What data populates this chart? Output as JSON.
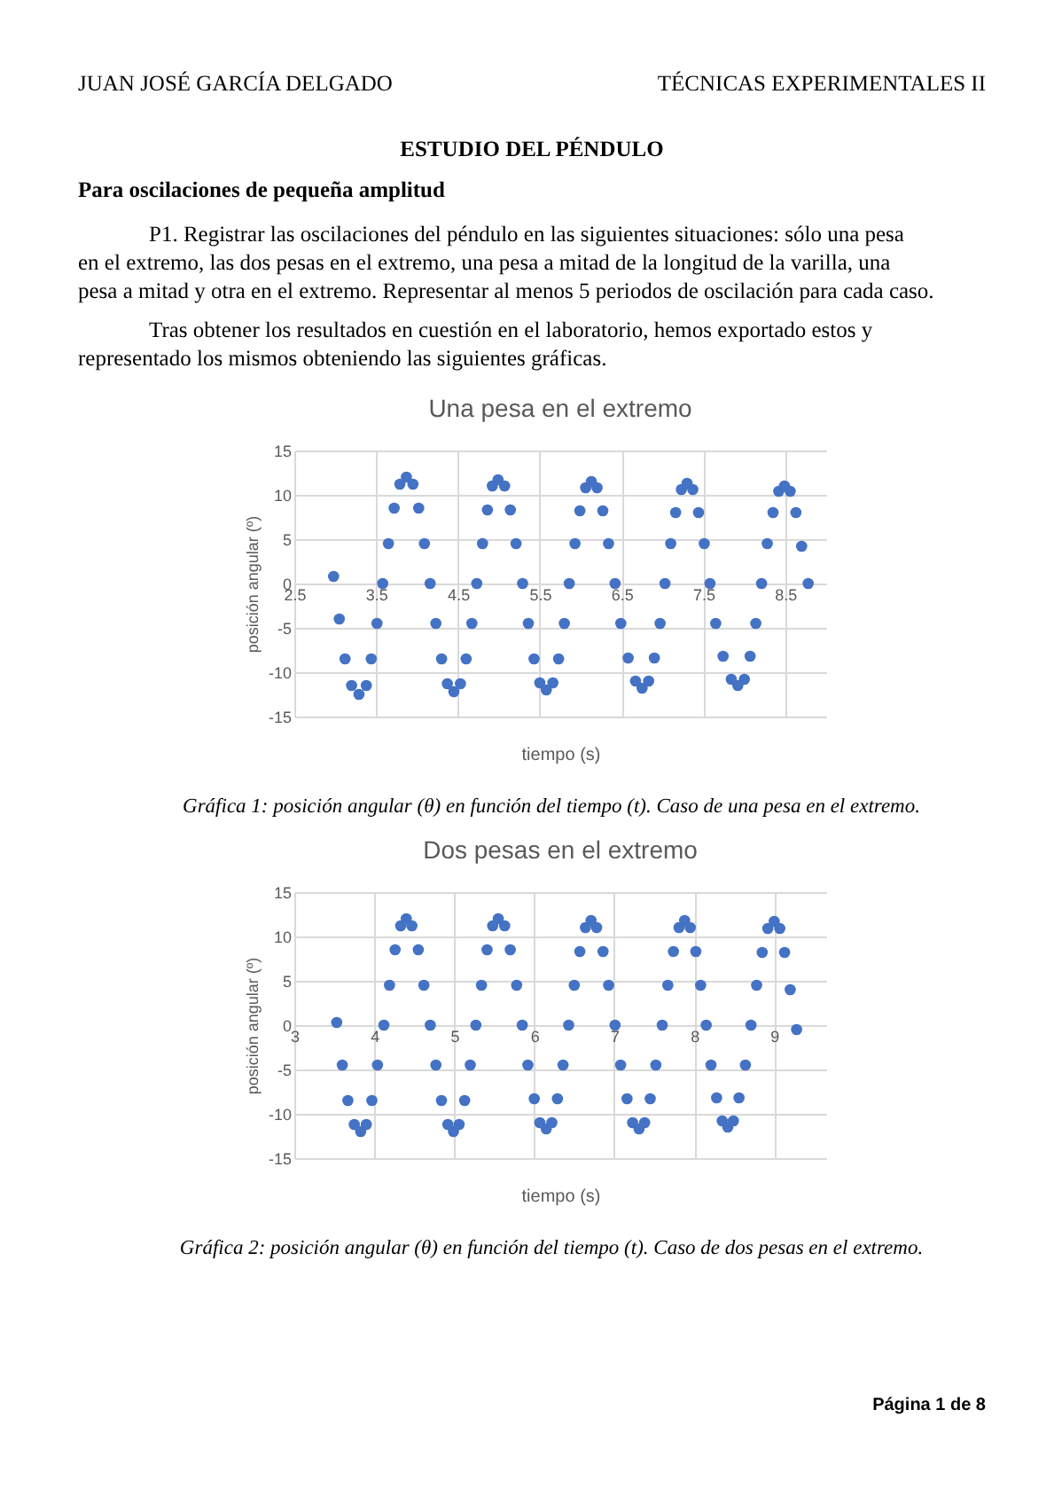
{
  "chart_data": [
    {
      "type": "scatter",
      "title": "Una pesa en el extremo",
      "xlabel": "tiempo (s)",
      "ylabel": "posición angular (º)",
      "x": [
        2.98,
        3.05,
        3.12,
        3.2,
        3.29,
        3.38,
        3.44,
        3.51,
        3.58,
        3.65,
        3.72,
        3.79,
        3.87,
        3.95,
        4.02,
        4.09,
        4.16,
        4.23,
        4.3,
        4.37,
        4.45,
        4.53,
        4.6,
        4.67,
        4.73,
        4.8,
        4.86,
        4.92,
        4.99,
        5.07,
        5.14,
        5.21,
        5.29,
        5.36,
        5.43,
        5.5,
        5.58,
        5.66,
        5.73,
        5.8,
        5.86,
        5.93,
        5.99,
        6.06,
        6.13,
        6.2,
        6.27,
        6.34,
        6.42,
        6.49,
        6.58,
        6.67,
        6.75,
        6.83,
        6.9,
        6.97,
        7.03,
        7.1,
        7.16,
        7.23,
        7.3,
        7.37,
        7.44,
        7.51,
        7.58,
        7.65,
        7.74,
        7.84,
        7.92,
        8.0,
        8.07,
        8.14,
        8.21,
        8.28,
        8.35,
        8.42,
        8.49,
        8.56,
        8.63,
        8.7,
        8.78
      ],
      "series": [
        {
          "color": "#4472c4",
          "values": [
            0.8,
            -4,
            -8.5,
            -11.5,
            -12.5,
            -11.5,
            -8.5,
            -4.5,
            0,
            4.5,
            8.5,
            11.2,
            12,
            11.2,
            8.5,
            4.5,
            0,
            -4.5,
            -8.5,
            -11.3,
            -12.2,
            -11.3,
            -8.5,
            -4.5,
            0,
            4.5,
            8.3,
            11,
            11.7,
            11,
            8.3,
            4.5,
            0,
            -4.5,
            -8.5,
            -11.2,
            -12,
            -11.2,
            -8.5,
            -4.5,
            0,
            4.5,
            8.2,
            10.8,
            11.5,
            10.8,
            8.2,
            4.5,
            0,
            -4.5,
            -8.4,
            -11,
            -11.8,
            -11,
            -8.4,
            -4.5,
            0,
            4.5,
            8,
            10.6,
            11.3,
            10.6,
            8,
            4.5,
            0,
            -4.5,
            -8.2,
            -10.8,
            -11.5,
            -10.8,
            -8.2,
            -4.5,
            0,
            4.5,
            8,
            10.4,
            11,
            10.4,
            8,
            4.2,
            0
          ]
        }
      ],
      "xlim": [
        2.5,
        9.0
      ],
      "xticks": [
        2.5,
        3.5,
        4.5,
        5.5,
        6.5,
        7.5,
        8.5
      ],
      "ylim": [
        -15,
        15
      ],
      "yticks": [
        -15,
        -10,
        -5,
        0,
        5,
        10,
        15
      ],
      "grid": true,
      "marker": "circle",
      "annotations": [
        "JUAN JOSÉ GARCÍA DELGADO",
        "TÉCNICAS EXPERIMENTALES II",
        "ESTUDIO DEL PÉNDULO",
        "Para oscilaciones de pequeña amplitud",
        "P1. Registrar las oscilaciones del péndulo en las siguientes situaciones: sólo una pesa en el extremo, las dos pesas en el extremo, una pesa a mitad de la longitud de la varilla, una pesa a mitad y otra en el extremo. Representar al menos 5 periodos de oscilación para cada caso.",
        "Tras obtener los resultados en cuestión en el laboratorio, hemos exportado estos y representado los mismos obteniendo las siguientes gráficas.",
        "Gráfica 1: posición angular (θ) en función del tiempo (t). Caso de una pesa en el extremo."
      ]
    },
    {
      "type": "scatter",
      "title": "Dos pesas en el extremo",
      "xlabel": "tiempo (s)",
      "ylabel": "posición angular (º)",
      "x": [
        3.53,
        3.6,
        3.67,
        3.75,
        3.83,
        3.9,
        3.97,
        4.04,
        4.12,
        4.19,
        4.26,
        4.33,
        4.4,
        4.47,
        4.55,
        4.62,
        4.7,
        4.77,
        4.84,
        4.92,
        4.99,
        5.06,
        5.13,
        5.2,
        5.27,
        5.34,
        5.41,
        5.48,
        5.55,
        5.63,
        5.7,
        5.78,
        5.85,
        5.92,
        6.0,
        6.07,
        6.15,
        6.22,
        6.29,
        6.36,
        6.43,
        6.5,
        6.57,
        6.64,
        6.71,
        6.78,
        6.86,
        6.93,
        7.01,
        7.08,
        7.16,
        7.23,
        7.31,
        7.38,
        7.45,
        7.52,
        7.6,
        7.67,
        7.74,
        7.81,
        7.88,
        7.95,
        8.02,
        8.08,
        8.15,
        8.21,
        8.28,
        8.35,
        8.42,
        8.49,
        8.56,
        8.64,
        8.71,
        8.78,
        8.85,
        8.92,
        9.0,
        9.07,
        9.13,
        9.2,
        9.28
      ],
      "series": [
        {
          "color": "#4472c4",
          "values": [
            0.3,
            -4.5,
            -8.5,
            -11.2,
            -12,
            -11.2,
            -8.5,
            -4.5,
            0,
            4.5,
            8.5,
            11.2,
            12,
            11.2,
            8.5,
            4.5,
            0,
            -4.5,
            -8.5,
            -11.2,
            -12,
            -11.2,
            -8.5,
            -4.5,
            0,
            4.5,
            8.5,
            11.2,
            12,
            11.2,
            8.5,
            4.5,
            0,
            -4.5,
            -8.3,
            -11,
            -11.7,
            -11,
            -8.3,
            -4.5,
            0,
            4.5,
            8.3,
            11,
            11.8,
            11,
            8.3,
            4.5,
            0,
            -4.5,
            -8.3,
            -11,
            -11.7,
            -11,
            -8.3,
            -4.5,
            0,
            4.5,
            8.3,
            11,
            11.8,
            11,
            8.3,
            4.5,
            0,
            -4.5,
            -8.2,
            -10.8,
            -11.5,
            -10.8,
            -8.2,
            -4.5,
            0,
            4.5,
            8.2,
            10.9,
            11.7,
            10.9,
            8.2,
            4,
            -0.5
          ]
        }
      ],
      "xlim": [
        3,
        9.65
      ],
      "xticks": [
        3,
        4,
        5,
        6,
        7,
        8,
        9
      ],
      "ylim": [
        -15,
        15
      ],
      "yticks": [
        -15,
        -10,
        -5,
        0,
        5,
        10,
        15
      ],
      "grid": true,
      "marker": "circle",
      "annotations": [
        "Gráfica 2: posición angular (θ) en función del tiempo (t). Caso de dos pesas en el extremo.",
        "Página 1 de 8"
      ]
    }
  ]
}
